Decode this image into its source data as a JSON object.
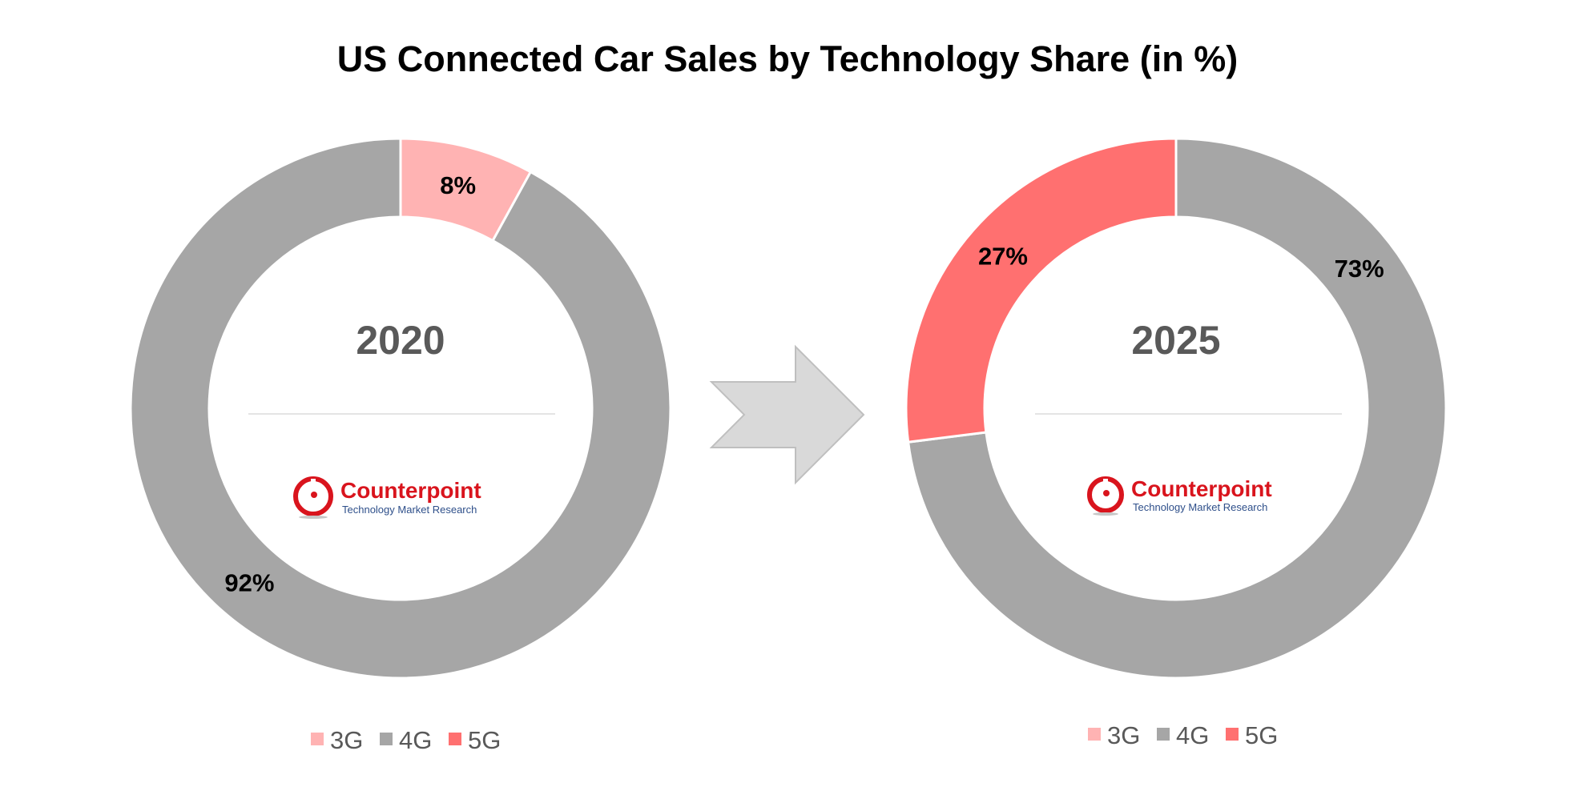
{
  "title": "US Connected Car Sales by Technology Share (in %)",
  "colors": {
    "3G": "#ffb3b3",
    "4G": "#a6a6a6",
    "5G": "#ff7070"
  },
  "brand": {
    "name": "Counterpoint",
    "tagline": "Technology Market Research",
    "color": "#d9141d"
  },
  "chart_data": [
    {
      "type": "pie",
      "variant": "donut",
      "center_label": "2020",
      "categories": [
        "3G",
        "4G",
        "5G"
      ],
      "values": [
        8,
        92,
        0
      ],
      "data_labels": [
        "8%",
        "92%",
        ""
      ],
      "legend": [
        "3G",
        "4G",
        "5G"
      ],
      "legend_position": "bottom"
    },
    {
      "type": "pie",
      "variant": "donut",
      "center_label": "2025",
      "categories": [
        "3G",
        "4G",
        "5G"
      ],
      "values": [
        0,
        73,
        27
      ],
      "data_labels": [
        "",
        "73%",
        "27%"
      ],
      "legend": [
        "3G",
        "4G",
        "5G"
      ],
      "legend_position": "bottom"
    }
  ]
}
